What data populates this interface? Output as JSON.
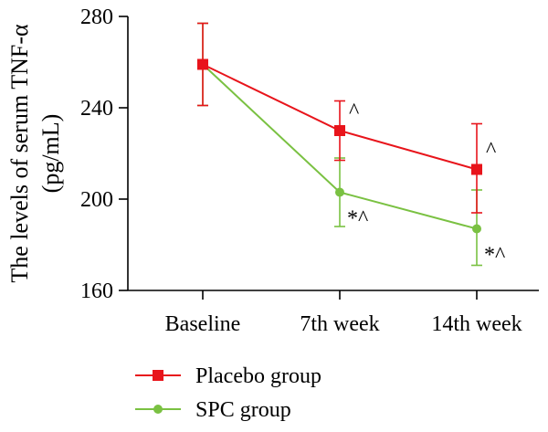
{
  "chart_data": {
    "type": "line",
    "title": "",
    "xlabel": "",
    "ylabel": "The levels of serum TNF-α",
    "ylabel_unit": "(pg/mL)",
    "categories": [
      "Baseline",
      "7th week",
      "14th week"
    ],
    "ylim": [
      160,
      280
    ],
    "yticks": [
      160,
      200,
      240,
      280
    ],
    "grid": false,
    "legend_position": "bottom-left",
    "series": [
      {
        "name": "Placebo group",
        "color": "#e8141b",
        "marker": "square",
        "values": [
          259,
          230,
          213
        ],
        "error_upper": [
          277,
          243,
          233
        ],
        "error_lower": [
          241,
          217,
          194
        ],
        "annotations": [
          "",
          "^",
          "^"
        ]
      },
      {
        "name": "SPC group",
        "color": "#7ac142",
        "marker": "circle",
        "values": [
          259,
          203,
          187
        ],
        "error_upper": [
          277,
          218,
          204
        ],
        "error_lower": [
          241,
          188,
          171
        ],
        "annotations": [
          "",
          "*^",
          "*^"
        ]
      }
    ]
  }
}
